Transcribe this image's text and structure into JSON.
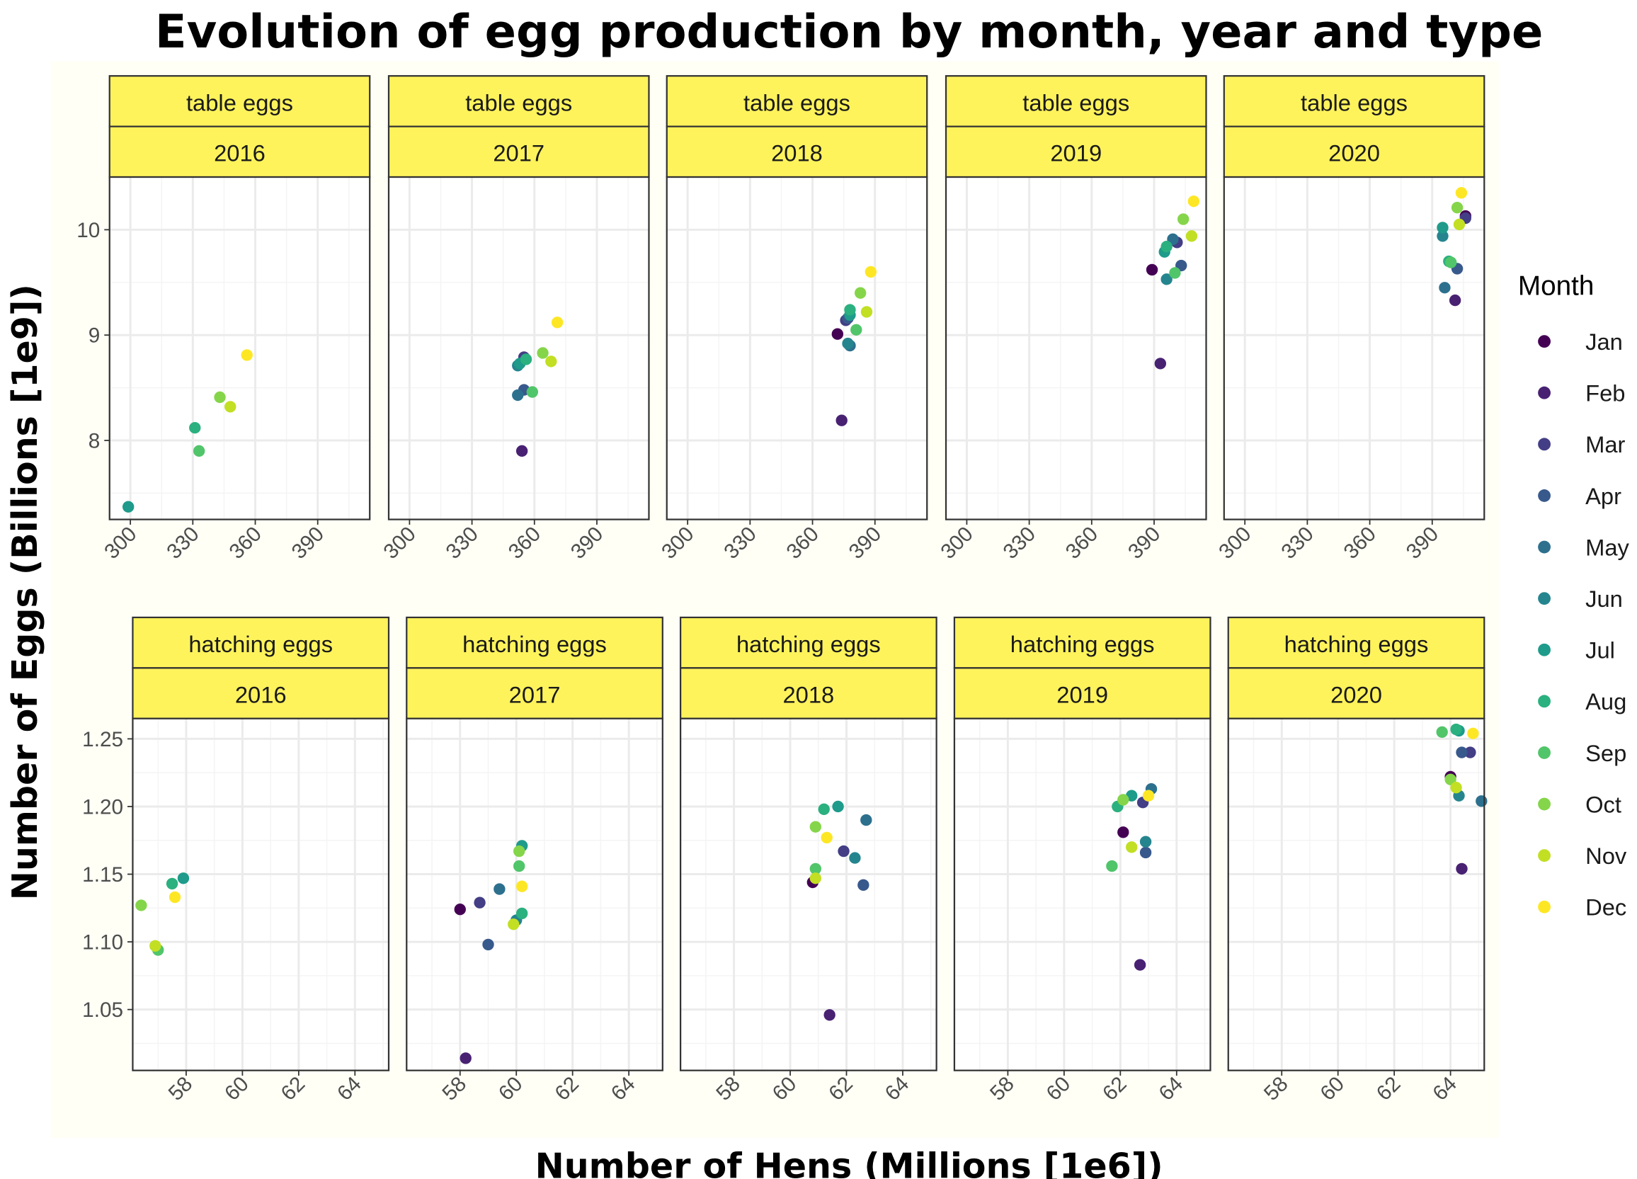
{
  "title": "Evolution of egg production by month, year and type",
  "xlabel": "Number of Hens (Millions [1e6])",
  "ylabel": "Number of Eggs (Billions [1e9])",
  "legend": {
    "title": "Month",
    "placement": "right",
    "months": [
      "Jan",
      "Feb",
      "Mar",
      "Apr",
      "May",
      "Jun",
      "Jul",
      "Aug",
      "Sep",
      "Oct",
      "Nov",
      "Dec"
    ],
    "colors": [
      "#440154",
      "#482173",
      "#433E85",
      "#38598C",
      "#2D708E",
      "#25858E",
      "#1E9B8A",
      "#2BB07F",
      "#51C56A",
      "#85D54A",
      "#C2DF23",
      "#FDE725"
    ]
  },
  "colors": {
    "strip_fill": "#FFF35C",
    "strip_border": "#333333",
    "panel_border": "#333333",
    "grid_major": "#EBEBEB",
    "grid_minor": "#F4F4F4",
    "background_band": "#FFFFF6"
  },
  "chart_data": [
    {
      "type": "scatter",
      "facet_row": "table eggs",
      "xlim": [
        290,
        415
      ],
      "ylim": [
        7.25,
        10.5
      ],
      "x_ticks": [
        300,
        330,
        360,
        390
      ],
      "y_ticks": [
        8,
        9,
        10
      ],
      "grid": true,
      "panels": [
        {
          "type_label": "table eggs",
          "year": "2016",
          "points": [
            {
              "month": "Jul",
              "x": 299,
              "y": 7.37
            },
            {
              "month": "Aug",
              "x": 331,
              "y": 8.12
            },
            {
              "month": "Sep",
              "x": 333,
              "y": 7.9
            },
            {
              "month": "Oct",
              "x": 343,
              "y": 8.41
            },
            {
              "month": "Nov",
              "x": 348,
              "y": 8.32
            },
            {
              "month": "Dec",
              "x": 356,
              "y": 8.81
            }
          ]
        },
        {
          "type_label": "table eggs",
          "year": "2017",
          "points": [
            {
              "month": "Jan",
              "x": 355,
              "y": 8.77
            },
            {
              "month": "Feb",
              "x": 354,
              "y": 7.9
            },
            {
              "month": "Mar",
              "x": 355,
              "y": 8.79
            },
            {
              "month": "Apr",
              "x": 355,
              "y": 8.48
            },
            {
              "month": "May",
              "x": 352,
              "y": 8.43
            },
            {
              "month": "Jun",
              "x": 352,
              "y": 8.71
            },
            {
              "month": "Jul",
              "x": 353,
              "y": 8.73
            },
            {
              "month": "Aug",
              "x": 356,
              "y": 8.77
            },
            {
              "month": "Sep",
              "x": 359,
              "y": 8.46
            },
            {
              "month": "Oct",
              "x": 364,
              "y": 8.83
            },
            {
              "month": "Nov",
              "x": 368,
              "y": 8.75
            },
            {
              "month": "Dec",
              "x": 371,
              "y": 9.12
            }
          ]
        },
        {
          "type_label": "table eggs",
          "year": "2018",
          "points": [
            {
              "month": "Jan",
              "x": 372,
              "y": 9.01
            },
            {
              "month": "Feb",
              "x": 374,
              "y": 8.19
            },
            {
              "month": "Mar",
              "x": 376,
              "y": 9.14
            },
            {
              "month": "Apr",
              "x": 377,
              "y": 9.16
            },
            {
              "month": "May",
              "x": 378,
              "y": 8.9
            },
            {
              "month": "Jun",
              "x": 377,
              "y": 8.92
            },
            {
              "month": "Jul",
              "x": 378,
              "y": 9.19
            },
            {
              "month": "Aug",
              "x": 378,
              "y": 9.24
            },
            {
              "month": "Sep",
              "x": 381,
              "y": 9.05
            },
            {
              "month": "Oct",
              "x": 383,
              "y": 9.4
            },
            {
              "month": "Nov",
              "x": 386,
              "y": 9.22
            },
            {
              "month": "Dec",
              "x": 388,
              "y": 9.6
            }
          ]
        },
        {
          "type_label": "table eggs",
          "year": "2019",
          "points": [
            {
              "month": "Jan",
              "x": 389,
              "y": 9.62
            },
            {
              "month": "Feb",
              "x": 393,
              "y": 8.73
            },
            {
              "month": "Mar",
              "x": 401,
              "y": 9.88
            },
            {
              "month": "Apr",
              "x": 403,
              "y": 9.66
            },
            {
              "month": "May",
              "x": 399,
              "y": 9.91
            },
            {
              "month": "Jun",
              "x": 396,
              "y": 9.53
            },
            {
              "month": "Jul",
              "x": 395,
              "y": 9.79
            },
            {
              "month": "Aug",
              "x": 396,
              "y": 9.84
            },
            {
              "month": "Sep",
              "x": 400,
              "y": 9.59
            },
            {
              "month": "Oct",
              "x": 404,
              "y": 10.1
            },
            {
              "month": "Nov",
              "x": 408,
              "y": 9.94
            },
            {
              "month": "Dec",
              "x": 409,
              "y": 10.27
            }
          ]
        },
        {
          "type_label": "table eggs",
          "year": "2020",
          "points": [
            {
              "month": "Jan",
              "x": 406,
              "y": 10.13
            },
            {
              "month": "Feb",
              "x": 401,
              "y": 9.33
            },
            {
              "month": "Mar",
              "x": 406,
              "y": 10.11
            },
            {
              "month": "Apr",
              "x": 402,
              "y": 9.63
            },
            {
              "month": "May",
              "x": 396,
              "y": 9.45
            },
            {
              "month": "Jun",
              "x": 395,
              "y": 9.94
            },
            {
              "month": "Jul",
              "x": 395,
              "y": 10.02
            },
            {
              "month": "Aug",
              "x": 398,
              "y": 9.7
            },
            {
              "month": "Sep",
              "x": 399,
              "y": 9.69
            },
            {
              "month": "Oct",
              "x": 402,
              "y": 10.21
            },
            {
              "month": "Nov",
              "x": 403,
              "y": 10.05
            },
            {
              "month": "Dec",
              "x": 404,
              "y": 10.35
            }
          ]
        }
      ]
    },
    {
      "type": "scatter",
      "facet_row": "hatching eggs",
      "xlim": [
        56.1,
        65.2
      ],
      "ylim": [
        1.005,
        1.265
      ],
      "x_ticks": [
        58,
        60,
        62,
        64
      ],
      "y_ticks": [
        1.05,
        1.1,
        1.15,
        1.2,
        1.25
      ],
      "grid": true,
      "panels": [
        {
          "type_label": "hatching eggs",
          "year": "2016",
          "points": [
            {
              "month": "Jul",
              "x": 57.9,
              "y": 1.147
            },
            {
              "month": "Aug",
              "x": 57.5,
              "y": 1.143
            },
            {
              "month": "Sep",
              "x": 57.0,
              "y": 1.094
            },
            {
              "month": "Oct",
              "x": 56.4,
              "y": 1.127
            },
            {
              "month": "Nov",
              "x": 56.9,
              "y": 1.097
            },
            {
              "month": "Dec",
              "x": 57.6,
              "y": 1.133
            }
          ]
        },
        {
          "type_label": "hatching eggs",
          "year": "2017",
          "points": [
            {
              "month": "Jan",
              "x": 58.0,
              "y": 1.124
            },
            {
              "month": "Feb",
              "x": 58.2,
              "y": 1.014
            },
            {
              "month": "Mar",
              "x": 58.7,
              "y": 1.129
            },
            {
              "month": "Apr",
              "x": 59.0,
              "y": 1.098
            },
            {
              "month": "May",
              "x": 59.4,
              "y": 1.139
            },
            {
              "month": "Jun",
              "x": 60.0,
              "y": 1.116
            },
            {
              "month": "Jul",
              "x": 60.2,
              "y": 1.171
            },
            {
              "month": "Aug",
              "x": 60.2,
              "y": 1.121
            },
            {
              "month": "Sep",
              "x": 60.1,
              "y": 1.156
            },
            {
              "month": "Oct",
              "x": 60.1,
              "y": 1.167
            },
            {
              "month": "Nov",
              "x": 59.9,
              "y": 1.113
            },
            {
              "month": "Dec",
              "x": 60.2,
              "y": 1.141
            }
          ]
        },
        {
          "type_label": "hatching eggs",
          "year": "2018",
          "points": [
            {
              "month": "Jan",
              "x": 60.8,
              "y": 1.144
            },
            {
              "month": "Feb",
              "x": 61.4,
              "y": 1.046
            },
            {
              "month": "Mar",
              "x": 61.9,
              "y": 1.167
            },
            {
              "month": "Apr",
              "x": 62.6,
              "y": 1.142
            },
            {
              "month": "May",
              "x": 62.7,
              "y": 1.19
            },
            {
              "month": "Jun",
              "x": 62.3,
              "y": 1.162
            },
            {
              "month": "Jul",
              "x": 61.7,
              "y": 1.2
            },
            {
              "month": "Aug",
              "x": 61.2,
              "y": 1.198
            },
            {
              "month": "Sep",
              "x": 60.9,
              "y": 1.154
            },
            {
              "month": "Oct",
              "x": 60.9,
              "y": 1.185
            },
            {
              "month": "Nov",
              "x": 60.9,
              "y": 1.147
            },
            {
              "month": "Dec",
              "x": 61.3,
              "y": 1.177
            }
          ]
        },
        {
          "type_label": "hatching eggs",
          "year": "2019",
          "points": [
            {
              "month": "Jan",
              "x": 62.1,
              "y": 1.181
            },
            {
              "month": "Feb",
              "x": 62.7,
              "y": 1.083
            },
            {
              "month": "Mar",
              "x": 62.8,
              "y": 1.203
            },
            {
              "month": "Apr",
              "x": 62.9,
              "y": 1.166
            },
            {
              "month": "May",
              "x": 63.1,
              "y": 1.213
            },
            {
              "month": "Jun",
              "x": 62.9,
              "y": 1.174
            },
            {
              "month": "Jul",
              "x": 62.4,
              "y": 1.208
            },
            {
              "month": "Aug",
              "x": 61.9,
              "y": 1.2
            },
            {
              "month": "Sep",
              "x": 61.7,
              "y": 1.156
            },
            {
              "month": "Oct",
              "x": 62.1,
              "y": 1.205
            },
            {
              "month": "Nov",
              "x": 62.4,
              "y": 1.17
            },
            {
              "month": "Dec",
              "x": 63.0,
              "y": 1.208
            }
          ]
        },
        {
          "type_label": "hatching eggs",
          "year": "2020",
          "points": [
            {
              "month": "Jan",
              "x": 64.0,
              "y": 1.222
            },
            {
              "month": "Feb",
              "x": 64.4,
              "y": 1.154
            },
            {
              "month": "Mar",
              "x": 64.7,
              "y": 1.24
            },
            {
              "month": "Apr",
              "x": 64.4,
              "y": 1.24
            },
            {
              "month": "May",
              "x": 65.1,
              "y": 1.204
            },
            {
              "month": "Jun",
              "x": 64.3,
              "y": 1.208
            },
            {
              "month": "Jul",
              "x": 64.3,
              "y": 1.256
            },
            {
              "month": "Aug",
              "x": 64.2,
              "y": 1.257
            },
            {
              "month": "Sep",
              "x": 63.7,
              "y": 1.255
            },
            {
              "month": "Oct",
              "x": 64.0,
              "y": 1.22
            },
            {
              "month": "Nov",
              "x": 64.2,
              "y": 1.214
            },
            {
              "month": "Dec",
              "x": 64.8,
              "y": 1.254
            }
          ]
        }
      ]
    }
  ]
}
